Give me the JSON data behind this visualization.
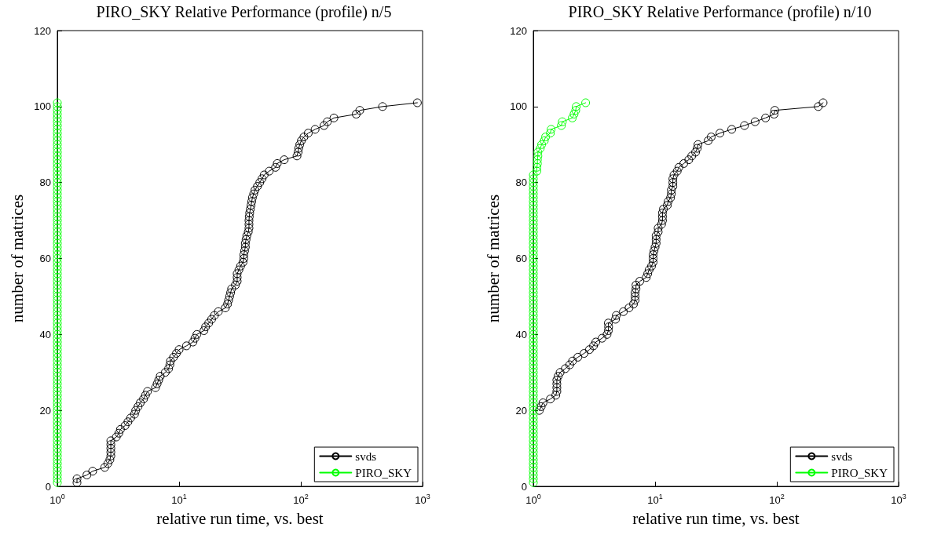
{
  "chart_data": [
    {
      "type": "line",
      "title": "PIRO_SKY Relative Performance (profile) n/5",
      "xlabel": "relative run time, vs. best",
      "ylabel": "number of matrices",
      "log": "x",
      "grid": false,
      "legend": "bottom right",
      "marker": "circle",
      "line_style": "solid",
      "xlim": [
        1,
        1000
      ],
      "xticks": [
        {
          "value": 1,
          "label": "10$^{0}$"
        },
        {
          "value": 10,
          "label": "10$^{1}$"
        },
        {
          "value": 100,
          "label": "10$^{2}$"
        },
        {
          "value": 1000,
          "label": "10$^{3}$"
        }
      ],
      "ylim": [
        0,
        120
      ],
      "yticks": [
        0,
        20,
        40,
        60,
        80,
        100,
        120
      ],
      "series": [
        {
          "name": "svds",
          "color": "#000000",
          "x": [
            1.45,
            1.45,
            1.75,
            1.95,
            2.45,
            2.6,
            2.7,
            2.75,
            2.75,
            2.75,
            2.75,
            2.75,
            3.05,
            3.2,
            3.3,
            3.6,
            3.8,
            4.0,
            4.3,
            4.4,
            4.6,
            4.8,
            5.1,
            5.3,
            5.5,
            6.4,
            6.6,
            6.8,
            7,
            7.7,
            8.2,
            8.4,
            8.5,
            9,
            9.5,
            10,
            11.5,
            13,
            13.5,
            14,
            16,
            16.5,
            17.5,
            18.5,
            19.5,
            21,
            24,
            25,
            25.5,
            26,
            26.5,
            27,
            29,
            30,
            30,
            30,
            31,
            32,
            33.5,
            34,
            34,
            34.5,
            35,
            35,
            35.5,
            36,
            37,
            37.5,
            37.5,
            37.5,
            37.7,
            38,
            38.5,
            39,
            39.5,
            40,
            41,
            42,
            44,
            46,
            48,
            50,
            55,
            62,
            64,
            73,
            93,
            95,
            96,
            98,
            101,
            106,
            115,
            131,
            155,
            165,
            187,
            285,
            305,
            469,
            906
          ],
          "values": [
            1,
            2,
            3,
            4,
            5,
            6,
            7,
            8,
            9,
            10,
            11,
            12,
            13,
            14,
            15,
            16,
            17,
            18,
            19,
            20,
            21,
            22,
            23,
            24,
            25,
            26,
            27,
            28,
            29,
            30,
            31,
            32,
            33,
            34,
            35,
            36,
            37,
            38,
            39,
            40,
            41,
            42,
            43,
            44,
            45,
            46,
            47,
            48,
            49,
            50,
            51,
            52,
            53,
            54,
            55,
            56,
            57,
            58,
            59,
            60,
            61,
            62,
            63,
            64,
            65,
            66,
            67,
            68,
            69,
            70,
            71,
            72,
            73,
            74,
            75,
            76,
            77,
            78,
            79,
            80,
            81,
            82,
            83,
            84,
            85,
            86,
            87,
            88,
            89,
            90,
            91,
            92,
            93,
            94,
            95,
            96,
            97,
            98,
            99,
            100,
            101
          ]
        },
        {
          "name": "PIRO_SKY",
          "color": "#00ff00",
          "x": [
            1,
            1,
            1,
            1,
            1,
            1,
            1,
            1,
            1,
            1,
            1,
            1,
            1,
            1,
            1,
            1,
            1,
            1,
            1,
            1,
            1,
            1,
            1,
            1,
            1,
            1,
            1,
            1,
            1,
            1,
            1,
            1,
            1,
            1,
            1,
            1,
            1,
            1,
            1,
            1,
            1,
            1,
            1,
            1,
            1,
            1,
            1,
            1,
            1,
            1,
            1,
            1,
            1,
            1,
            1,
            1,
            1,
            1,
            1,
            1,
            1,
            1,
            1,
            1,
            1,
            1,
            1,
            1,
            1,
            1,
            1,
            1,
            1,
            1,
            1,
            1,
            1,
            1,
            1,
            1,
            1,
            1,
            1,
            1,
            1,
            1,
            1,
            1,
            1,
            1,
            1,
            1,
            1,
            1,
            1,
            1,
            1,
            1,
            1,
            1,
            1
          ],
          "values": [
            1,
            2,
            3,
            4,
            5,
            6,
            7,
            8,
            9,
            10,
            11,
            12,
            13,
            14,
            15,
            16,
            17,
            18,
            19,
            20,
            21,
            22,
            23,
            24,
            25,
            26,
            27,
            28,
            29,
            30,
            31,
            32,
            33,
            34,
            35,
            36,
            37,
            38,
            39,
            40,
            41,
            42,
            43,
            44,
            45,
            46,
            47,
            48,
            49,
            50,
            51,
            52,
            53,
            54,
            55,
            56,
            57,
            58,
            59,
            60,
            61,
            62,
            63,
            64,
            65,
            66,
            67,
            68,
            69,
            70,
            71,
            72,
            73,
            74,
            75,
            76,
            77,
            78,
            79,
            80,
            81,
            82,
            83,
            84,
            85,
            86,
            87,
            88,
            89,
            90,
            91,
            92,
            93,
            94,
            95,
            96,
            97,
            98,
            99,
            100,
            101
          ]
        }
      ]
    },
    {
      "type": "line",
      "title": "PIRO_SKY Relative Performance (profile) n/10",
      "xlabel": "relative run time, vs. best",
      "ylabel": "number of matrices",
      "log": "x",
      "grid": false,
      "legend": "bottom right",
      "marker": "circle",
      "line_style": "solid",
      "xlim": [
        1,
        1000
      ],
      "xticks": [
        {
          "value": 1,
          "label": "10$^{0}$"
        },
        {
          "value": 10,
          "label": "10$^{1}$"
        },
        {
          "value": 100,
          "label": "10$^{2}$"
        },
        {
          "value": 1000,
          "label": "10$^{3}$"
        }
      ],
      "ylim": [
        0,
        120
      ],
      "yticks": [
        0,
        20,
        40,
        60,
        80,
        100,
        120
      ],
      "series": [
        {
          "name": "svds",
          "color": "#000000",
          "x": [
            1.12,
            1.16,
            1.2,
            1.38,
            1.53,
            1.56,
            1.56,
            1.56,
            1.56,
            1.6,
            1.66,
            1.83,
            1.99,
            2.1,
            2.32,
            2.61,
            2.89,
            3.12,
            3.26,
            3.67,
            4.03,
            4.13,
            4.15,
            4.13,
            4.73,
            4.8,
            5.49,
            6.11,
            6.65,
            6.85,
            6.85,
            6.85,
            6.97,
            6.97,
            7.49,
            8.46,
            8.7,
            8.93,
            9.36,
            9.63,
            9.63,
            9.63,
            9.8,
            10,
            10.2,
            10.2,
            10.2,
            10.6,
            10.6,
            11.3,
            11.5,
            11.5,
            11.5,
            11.7,
            12.6,
            12.8,
            13.4,
            13.6,
            13.6,
            14,
            14,
            14,
            14.3,
            15.2,
            15.7,
            17.2,
            18.9,
            20,
            21.5,
            22.2,
            22.5,
            27.3,
            28.9,
            34.1,
            42.6,
            54.2,
            66.3,
            80.8,
            94.9,
            96.2,
            219,
            240
          ],
          "values": [
            20,
            21,
            22,
            23,
            24,
            25,
            26,
            27,
            28,
            29,
            30,
            31,
            32,
            33,
            34,
            35,
            36,
            37,
            38,
            39,
            40,
            41,
            42,
            43,
            44,
            45,
            46,
            47,
            48,
            49,
            50,
            51,
            52,
            53,
            54,
            55,
            56,
            57,
            58,
            59,
            60,
            61,
            62,
            63,
            64,
            65,
            66,
            67,
            68,
            69,
            70,
            71,
            72,
            73,
            74,
            75,
            76,
            77,
            78,
            79,
            80,
            81,
            82,
            83,
            84,
            85,
            86,
            87,
            88,
            89,
            90,
            91,
            92,
            93,
            94,
            95,
            96,
            97,
            98,
            99,
            100,
            101
          ]
        },
        {
          "name": "PIRO_SKY",
          "color": "#00ff00",
          "x": [
            1,
            1,
            1,
            1,
            1,
            1,
            1,
            1,
            1,
            1,
            1,
            1,
            1,
            1,
            1,
            1,
            1,
            1,
            1,
            1,
            1,
            1,
            1,
            1,
            1,
            1,
            1,
            1,
            1,
            1,
            1,
            1,
            1,
            1,
            1,
            1,
            1,
            1,
            1,
            1,
            1,
            1,
            1,
            1,
            1,
            1,
            1,
            1,
            1,
            1,
            1,
            1,
            1,
            1,
            1,
            1,
            1,
            1,
            1,
            1,
            1,
            1,
            1,
            1,
            1,
            1,
            1,
            1,
            1,
            1,
            1,
            1,
            1,
            1,
            1,
            1,
            1,
            1,
            1,
            1,
            1,
            1,
            1.07,
            1.07,
            1.08,
            1.08,
            1.09,
            1.09,
            1.14,
            1.17,
            1.23,
            1.26,
            1.38,
            1.4,
            1.7,
            1.73,
            2.09,
            2.16,
            2.23,
            2.25,
            2.69
          ],
          "values": [
            1,
            2,
            3,
            4,
            5,
            6,
            7,
            8,
            9,
            10,
            11,
            12,
            13,
            14,
            15,
            16,
            17,
            18,
            19,
            20,
            21,
            22,
            23,
            24,
            25,
            26,
            27,
            28,
            29,
            30,
            31,
            32,
            33,
            34,
            35,
            36,
            37,
            38,
            39,
            40,
            41,
            42,
            43,
            44,
            45,
            46,
            47,
            48,
            49,
            50,
            51,
            52,
            53,
            54,
            55,
            56,
            57,
            58,
            59,
            60,
            61,
            62,
            63,
            64,
            65,
            66,
            67,
            68,
            69,
            70,
            71,
            72,
            73,
            74,
            75,
            76,
            77,
            78,
            79,
            80,
            81,
            82,
            83,
            84,
            85,
            86,
            87,
            88,
            89,
            90,
            91,
            92,
            93,
            94,
            95,
            96,
            97,
            98,
            99,
            100,
            101
          ]
        }
      ]
    }
  ]
}
